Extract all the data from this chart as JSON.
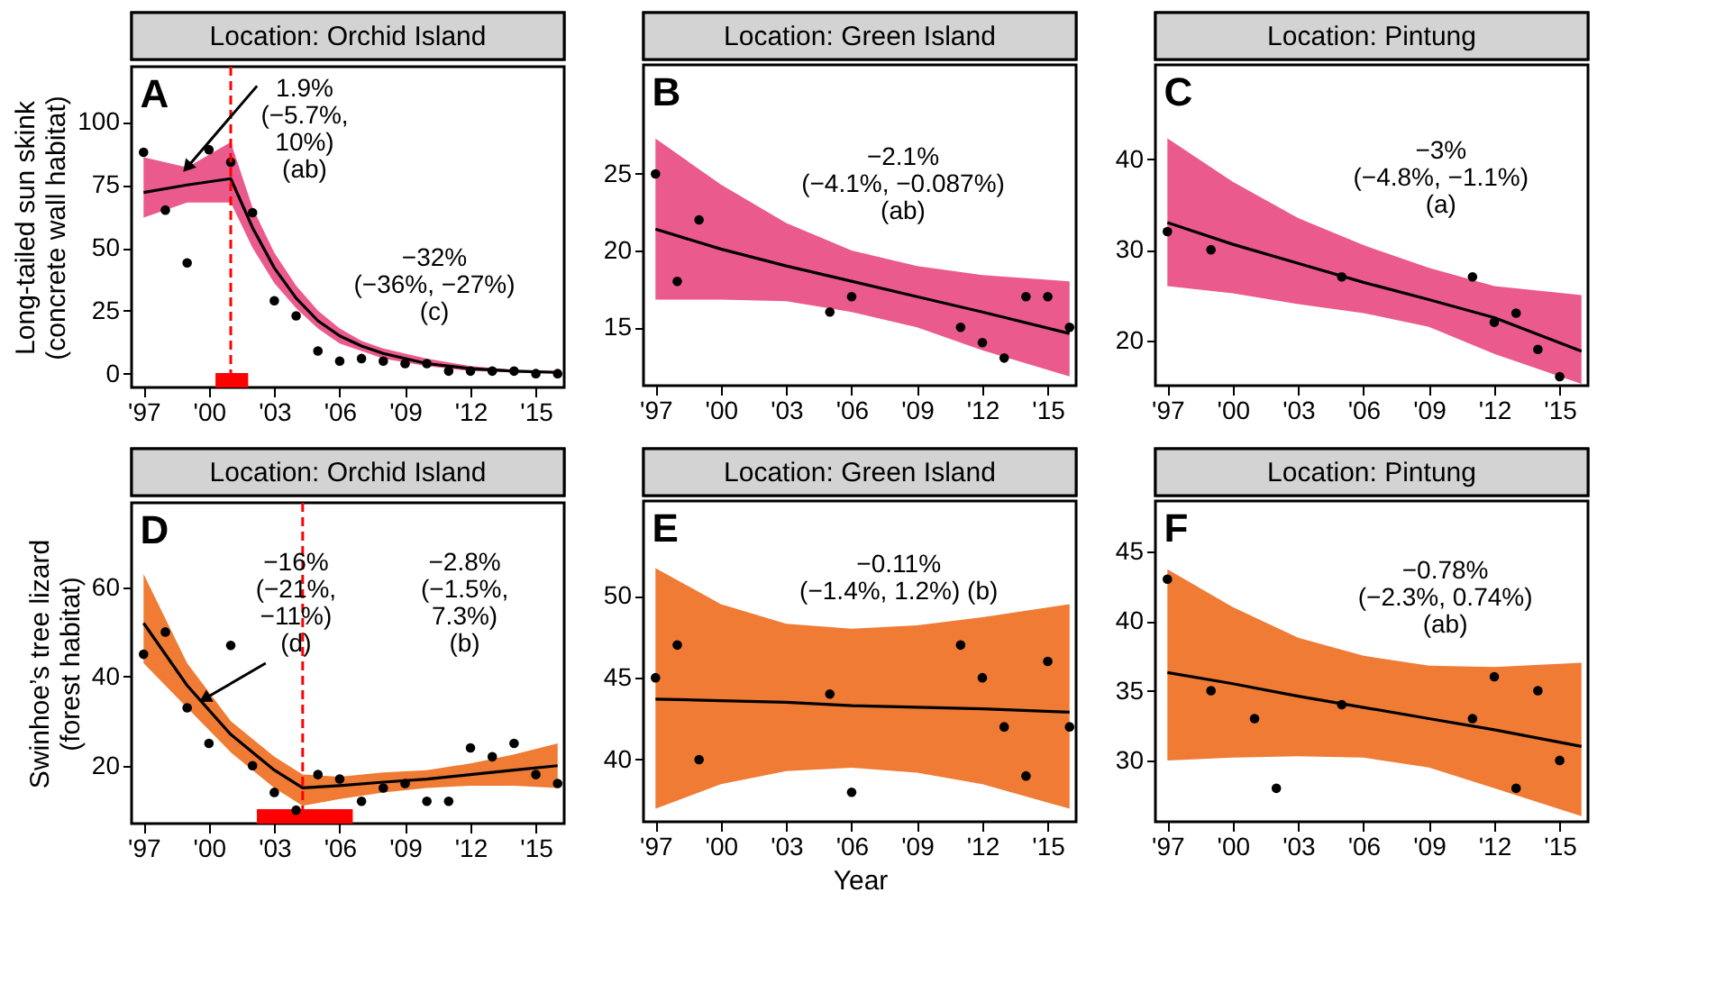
{
  "chart_data": [
    {
      "type": "scatter",
      "title": "Location: Orchid Island",
      "ylabel": "Long-tailed sun skink\n(concrete wall habitat)",
      "xlim": [
        1996.45,
        2016.3
      ],
      "ylim": [
        -5.5,
        122
      ],
      "xticks": [
        {
          "value": 1997,
          "label": "'97"
        },
        {
          "value": 2000,
          "label": "'00"
        },
        {
          "value": 2003,
          "label": "'03"
        },
        {
          "value": 2006,
          "label": "'06"
        },
        {
          "value": 2009,
          "label": "'09"
        },
        {
          "value": 2012,
          "label": "'12"
        },
        {
          "value": 2015,
          "label": "'15"
        }
      ],
      "yticks": [
        0,
        25,
        50,
        75,
        100
      ],
      "annotations": [
        "A",
        {
          "text": "1.9%\n(−5.7%,\n10%)\n(ab)",
          "x": 1999,
          "y": 82
        },
        "−32%\n(−36%, −27%)\n(c)"
      ],
      "ref_lines": [
        {
          "axis": "x",
          "value": 2001,
          "color": "#ff0000",
          "line_style": "dashed"
        }
      ],
      "bands": [
        {
          "axis": "x",
          "from": 2000.3,
          "to": 2001.8,
          "color": "#ff0000"
        }
      ],
      "series": [
        {
          "marker": "circle",
          "color": "#000000",
          "x": [
            1997,
            1998,
            1999,
            2000,
            2001,
            2002,
            2003,
            2004,
            2005,
            2006,
            2007,
            2008,
            2009,
            2010,
            2011,
            2012,
            2013,
            2014,
            2015,
            2016
          ],
          "values": [
            88,
            65,
            44,
            89,
            84,
            64,
            29,
            23,
            9,
            5,
            6,
            5,
            4,
            4,
            1,
            1,
            1,
            1,
            0,
            0
          ]
        },
        {
          "type": "line",
          "color": "#000000",
          "x": [
            1997,
            1999,
            2001,
            2002,
            2003,
            2004,
            2005,
            2006,
            2007,
            2008,
            2010,
            2012,
            2014,
            2016
          ],
          "values": [
            72,
            75,
            77.5,
            58,
            42,
            30,
            21,
            15,
            11,
            8,
            4,
            2,
            1,
            0.5
          ],
          "lower": [
            62,
            68,
            68,
            50,
            36,
            26,
            18,
            12,
            9,
            6,
            3,
            1,
            0.5,
            0
          ],
          "upper": [
            86,
            82,
            92,
            66,
            48,
            35,
            25,
            18,
            13,
            10,
            6,
            3,
            1.5,
            1
          ]
        }
      ]
    },
    {
      "type": "scatter",
      "title": "Location: Green Island",
      "xlim": [
        1996.45,
        2016.3
      ],
      "ylim": [
        11.2,
        32.1
      ],
      "xticks": [
        {
          "value": 1997,
          "label": "'97"
        },
        {
          "value": 2000,
          "label": "'00"
        },
        {
          "value": 2003,
          "label": "'03"
        },
        {
          "value": 2006,
          "label": "'06"
        },
        {
          "value": 2009,
          "label": "'09"
        },
        {
          "value": 2012,
          "label": "'12"
        },
        {
          "value": 2015,
          "label": "'15"
        }
      ],
      "yticks": [
        15,
        20,
        25
      ],
      "annotations": [
        "B",
        "−2.1%\n(−4.1%, −0.087%)\n(ab)"
      ],
      "series": [
        {
          "marker": "circle",
          "color": "#000000",
          "x": [
            1997,
            1998,
            1999,
            2005,
            2006,
            2011,
            2012,
            2013,
            2014,
            2015,
            2016
          ],
          "values": [
            25,
            18,
            22,
            16,
            17,
            15,
            14,
            13,
            17,
            17,
            15
          ]
        },
        {
          "type": "line",
          "color": "#000000",
          "x": [
            1997,
            2000,
            2003,
            2006,
            2009,
            2012,
            2016
          ],
          "values": [
            21.4,
            20.1,
            19,
            18,
            17,
            16,
            14.6
          ],
          "lower": [
            16.8,
            16.8,
            16.7,
            16,
            15,
            13.5,
            11.8
          ],
          "upper": [
            27.3,
            24.3,
            21.8,
            20,
            19,
            18.4,
            18
          ]
        }
      ]
    },
    {
      "type": "scatter",
      "title": "Location: Pintung",
      "xlim": [
        1996.45,
        2016.3
      ],
      "ylim": [
        15,
        50.4
      ],
      "xticks": [
        {
          "value": 1997,
          "label": "'97"
        },
        {
          "value": 2000,
          "label": "'00"
        },
        {
          "value": 2003,
          "label": "'03"
        },
        {
          "value": 2006,
          "label": "'06"
        },
        {
          "value": 2009,
          "label": "'09"
        },
        {
          "value": 2012,
          "label": "'12"
        },
        {
          "value": 2015,
          "label": "'15"
        }
      ],
      "yticks": [
        20,
        30,
        40
      ],
      "annotations": [
        "C",
        "−3%\n(−4.8%, −1.1%)\n(a)"
      ],
      "series": [
        {
          "marker": "circle",
          "color": "#000000",
          "x": [
            1997,
            1999,
            2005,
            2011,
            2012,
            2013,
            2014,
            2015
          ],
          "values": [
            32,
            30,
            27,
            27,
            22,
            23,
            19,
            16
          ]
        },
        {
          "type": "line",
          "color": "#000000",
          "x": [
            1997,
            2000,
            2003,
            2006,
            2009,
            2012,
            2016
          ],
          "values": [
            33,
            30.6,
            28.5,
            26.4,
            24.5,
            22.5,
            18.8
          ],
          "lower": [
            26,
            25.2,
            24,
            23,
            21.5,
            18.5,
            15.2
          ],
          "upper": [
            42.3,
            37.5,
            33.5,
            30.5,
            28,
            26,
            25
          ]
        }
      ]
    },
    {
      "type": "scatter",
      "title": "Location: Orchid Island",
      "ylabel": "Swinhoe’s tree lizard\n(forest habitat)",
      "xlim": [
        1996.45,
        2016.3
      ],
      "ylim": [
        7,
        79
      ],
      "xticks": [
        {
          "value": 1997,
          "label": "'97"
        },
        {
          "value": 2000,
          "label": "'00"
        },
        {
          "value": 2003,
          "label": "'03"
        },
        {
          "value": 2006,
          "label": "'06"
        },
        {
          "value": 2009,
          "label": "'09"
        },
        {
          "value": 2012,
          "label": "'12"
        },
        {
          "value": 2015,
          "label": "'15"
        }
      ],
      "yticks": [
        20,
        40,
        60
      ],
      "annotations": [
        "D",
        {
          "text": "−16%\n(−21%,\n−11%)\n(d)",
          "x": 1999.8,
          "y": 35
        },
        "−2.8%\n(−1.5%,\n7.3%)\n(b)"
      ],
      "ref_lines": [
        {
          "axis": "x",
          "value": 2004.3,
          "color": "#ff0000",
          "line_style": "dashed"
        }
      ],
      "bands": [
        {
          "axis": "x",
          "from": 2002.2,
          "to": 2006.6,
          "color": "#ff0000"
        }
      ],
      "series": [
        {
          "marker": "circle",
          "color": "#000000",
          "x": [
            1997,
            1998,
            1999,
            2000,
            2001,
            2002,
            2003,
            2004,
            2005,
            2006,
            2007,
            2008,
            2009,
            2010,
            2011,
            2012,
            2013,
            2014,
            2015,
            2016
          ],
          "values": [
            45,
            50,
            33,
            25,
            47,
            20,
            14,
            10,
            18,
            17,
            12,
            15,
            16,
            12,
            12,
            24,
            22,
            25,
            18,
            16
          ]
        },
        {
          "type": "line",
          "color": "#000000",
          "x": [
            1997,
            1999,
            2001,
            2003,
            2004.3,
            2006,
            2008,
            2010,
            2012,
            2014,
            2016
          ],
          "values": [
            52,
            38,
            27,
            19,
            15,
            15.5,
            16.3,
            17,
            18,
            19,
            20
          ],
          "lower": [
            43,
            33,
            23,
            15,
            11,
            12.5,
            14,
            15,
            15.5,
            15.5,
            15
          ],
          "upper": [
            63,
            43,
            30,
            22,
            18,
            17.5,
            18.5,
            19,
            20.5,
            22.5,
            25
          ]
        }
      ]
    },
    {
      "type": "scatter",
      "title": "Location: Green Island",
      "xlabel": "Year",
      "xlim": [
        1996.45,
        2016.3
      ],
      "ylim": [
        36.2,
        55.8
      ],
      "xticks": [
        {
          "value": 1997,
          "label": "'97"
        },
        {
          "value": 2000,
          "label": "'00"
        },
        {
          "value": 2003,
          "label": "'03"
        },
        {
          "value": 2006,
          "label": "'06"
        },
        {
          "value": 2009,
          "label": "'09"
        },
        {
          "value": 2012,
          "label": "'12"
        },
        {
          "value": 2015,
          "label": "'15"
        }
      ],
      "yticks": [
        40,
        45,
        50
      ],
      "annotations": [
        "E",
        "−0.11%\n(−1.4%, 1.2%) (b)"
      ],
      "series": [
        {
          "marker": "circle",
          "color": "#000000",
          "x": [
            1997,
            1998,
            1999,
            2005,
            2006,
            2011,
            2012,
            2013,
            2014,
            2015,
            2016
          ],
          "values": [
            45,
            47,
            40,
            44,
            38,
            47,
            45,
            42,
            39,
            46,
            42
          ]
        },
        {
          "type": "line",
          "color": "#000000",
          "x": [
            1997,
            2000,
            2003,
            2006,
            2009,
            2012,
            2016
          ],
          "values": [
            43.7,
            43.6,
            43.5,
            43.3,
            43.2,
            43.1,
            42.9
          ],
          "lower": [
            37,
            38.5,
            39.3,
            39.5,
            39.2,
            38.5,
            37
          ],
          "upper": [
            51.7,
            49.5,
            48.3,
            48,
            48.2,
            48.7,
            49.5
          ]
        }
      ]
    },
    {
      "type": "scatter",
      "title": "Location: Pintung",
      "xlim": [
        1996.45,
        2016.3
      ],
      "ylim": [
        25.6,
        48.6
      ],
      "xticks": [
        {
          "value": 1997,
          "label": "'97"
        },
        {
          "value": 2000,
          "label": "'00"
        },
        {
          "value": 2003,
          "label": "'03"
        },
        {
          "value": 2006,
          "label": "'06"
        },
        {
          "value": 2009,
          "label": "'09"
        },
        {
          "value": 2012,
          "label": "'12"
        },
        {
          "value": 2015,
          "label": "'15"
        }
      ],
      "yticks": [
        30,
        35,
        40,
        45
      ],
      "annotations": [
        "F",
        "−0.78%\n(−2.3%, 0.74%)\n(ab)"
      ],
      "series": [
        {
          "marker": "circle",
          "color": "#000000",
          "x": [
            1997,
            1999,
            2001,
            2002,
            2005,
            2011,
            2012,
            2013,
            2014,
            2015
          ],
          "values": [
            43,
            35,
            33,
            28,
            34,
            33,
            36,
            28,
            35,
            30
          ]
        },
        {
          "type": "line",
          "color": "#000000",
          "x": [
            1997,
            2000,
            2003,
            2006,
            2009,
            2012,
            2016
          ],
          "values": [
            36.3,
            35.5,
            34.6,
            33.8,
            33,
            32.2,
            31
          ],
          "lower": [
            30,
            30.2,
            30.3,
            30.2,
            29.5,
            28,
            26
          ],
          "upper": [
            43.7,
            41,
            38.8,
            37.5,
            36.8,
            36.7,
            37
          ]
        }
      ]
    }
  ]
}
